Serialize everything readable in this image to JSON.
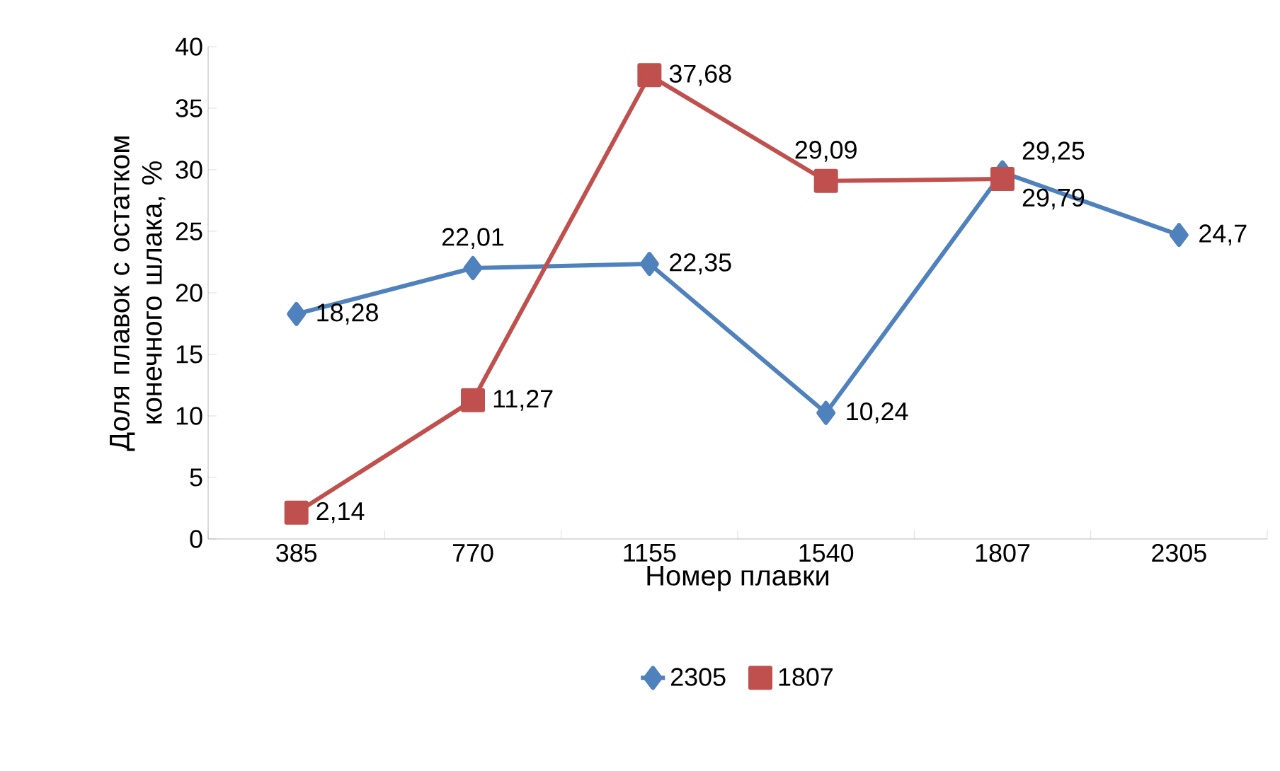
{
  "chart_data": {
    "type": "line",
    "xlabel": "Номер плавки",
    "ylabel": "Доля плавок с остатком конечного шлака, %",
    "categories": [
      "385",
      "770",
      "1155",
      "1540",
      "1807",
      "2305"
    ],
    "series": [
      {
        "name": "2305",
        "color": "#4f81bd",
        "marker": "diamond",
        "values": [
          18.28,
          22.01,
          22.35,
          10.24,
          29.79,
          24.7
        ],
        "value_labels": [
          "18,28",
          "22,01",
          "22,35",
          "10,24",
          "29,79",
          "24,7"
        ]
      },
      {
        "name": "1807",
        "color": "#c0504d",
        "marker": "square",
        "values": [
          2.14,
          11.27,
          37.68,
          29.09,
          29.25,
          null
        ],
        "value_labels": [
          "2,14",
          "11,27",
          "37,68",
          "29,09",
          "29,25",
          null
        ]
      }
    ],
    "ylim": [
      0,
      40
    ],
    "yticks": [
      0,
      5,
      10,
      15,
      20,
      25,
      30,
      35,
      40
    ],
    "grid": false,
    "legend": "bottom"
  }
}
